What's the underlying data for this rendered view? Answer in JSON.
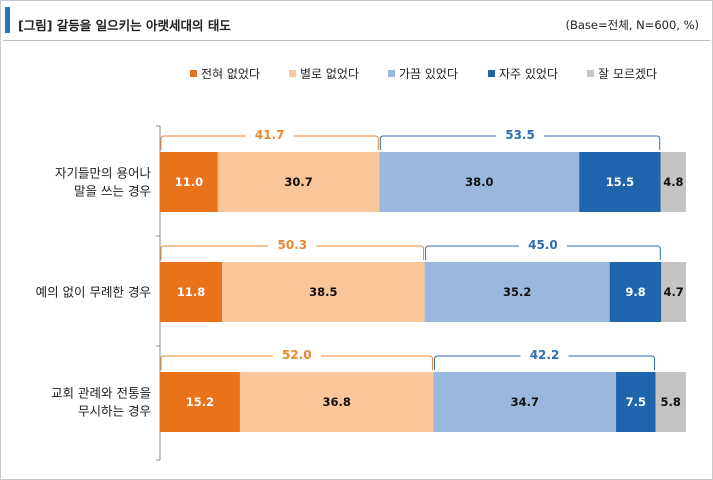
{
  "header": {
    "title": "[그림] 갈등을 일으키는 아랫세대의 태도",
    "base_note": "(Base=전체, N=600, %)"
  },
  "chart_data": {
    "type": "bar",
    "orientation": "horizontal",
    "stacked": true,
    "title": "[그림] 갈등을 일으키는 아랫세대의 태도",
    "xlabel": "",
    "ylabel": "",
    "xlim": [
      0,
      100
    ],
    "legend_position": "top",
    "categories": [
      [
        "자기들만의 용어나",
        "말을 쓰는 경우"
      ],
      [
        "예의 없이 무례한 경우"
      ],
      [
        "교회 관례와 전통을",
        "무시하는 경우"
      ]
    ],
    "series": [
      {
        "name": "전혀 없었다",
        "color": "#e8731a",
        "label_color": "#ffffff",
        "values": [
          11.0,
          11.8,
          15.2
        ]
      },
      {
        "name": "별로 없었다",
        "color": "#fbc59a",
        "label_color": "#111111",
        "values": [
          30.7,
          38.5,
          36.8
        ]
      },
      {
        "name": "가끔 있었다",
        "color": "#9ab8de",
        "label_color": "#111111",
        "values": [
          38.0,
          35.2,
          34.7
        ]
      },
      {
        "name": "자주 있었다",
        "color": "#1f65ad",
        "label_color": "#ffffff",
        "values": [
          15.5,
          9.8,
          7.5
        ]
      },
      {
        "name": "잘 모르겠다",
        "color": "#c4c4c4",
        "label_color": "#111111",
        "values": [
          4.8,
          4.7,
          5.8
        ]
      }
    ],
    "group_totals": {
      "negative": {
        "series": [
          0,
          1
        ],
        "color": "#e8882f",
        "values": [
          41.7,
          50.3,
          52.0
        ]
      },
      "positive": {
        "series": [
          2,
          3
        ],
        "color": "#2e6fb5",
        "values": [
          53.5,
          45.0,
          42.2
        ]
      }
    }
  }
}
